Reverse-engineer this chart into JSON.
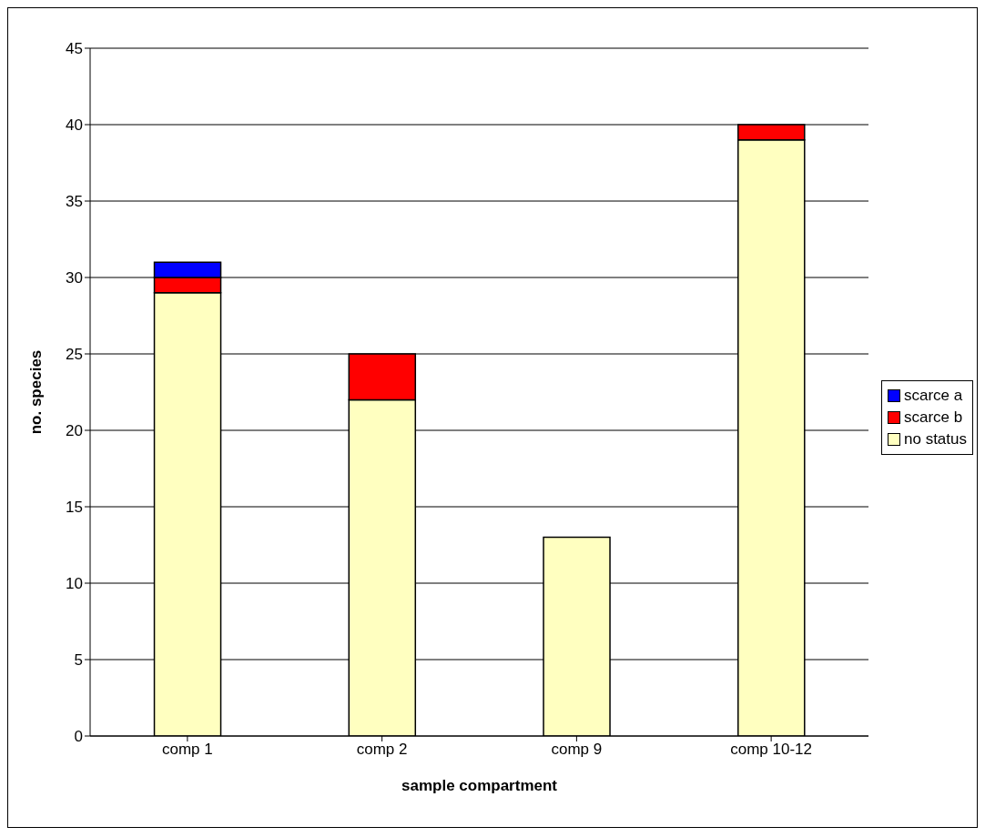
{
  "chart_data": {
    "type": "bar",
    "xlabel": "sample compartment",
    "ylabel": "no. species",
    "categories": [
      "comp 1",
      "comp 2",
      "comp 9",
      "comp 10-12"
    ],
    "series": [
      {
        "name": "no status",
        "color": "#ffffc0",
        "values": [
          29,
          22,
          13,
          39
        ]
      },
      {
        "name": "scarce b",
        "color": "#ff0000",
        "values": [
          1,
          3,
          0,
          1
        ]
      },
      {
        "name": "scarce a",
        "color": "#0000ff",
        "values": [
          1,
          0,
          0,
          0
        ]
      }
    ],
    "stacked": true,
    "ylim": [
      0,
      45
    ],
    "yticks": [
      0,
      5,
      10,
      15,
      20,
      25,
      30,
      35,
      40,
      45
    ],
    "grid": "y",
    "legend": "right"
  }
}
